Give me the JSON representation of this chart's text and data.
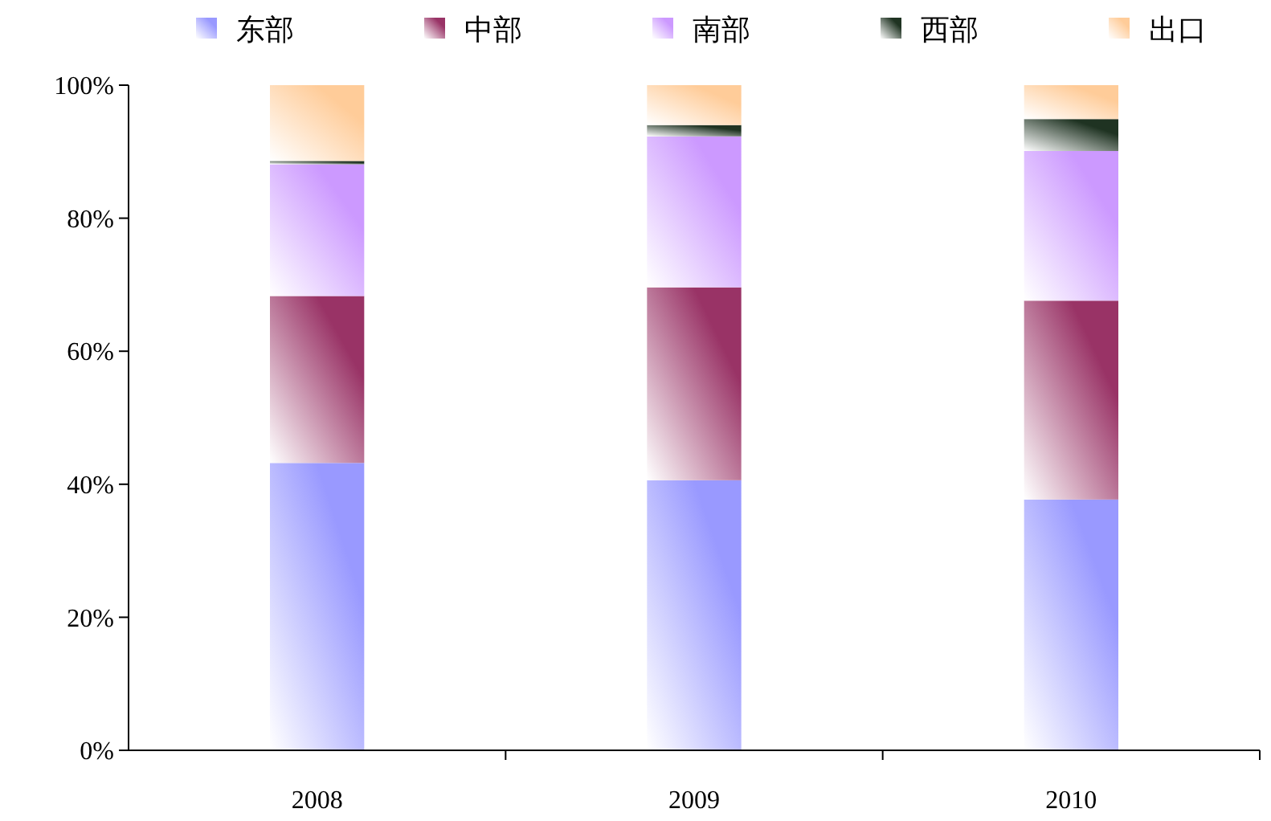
{
  "chart_data": {
    "type": "bar",
    "stacked": true,
    "categories": [
      "2008",
      "2009",
      "2010"
    ],
    "series": [
      {
        "name": "东部",
        "color": "#9999ff",
        "values": [
          43.2,
          40.6,
          37.7
        ]
      },
      {
        "name": "中部",
        "color": "#993366",
        "values": [
          25.1,
          29,
          29.9
        ]
      },
      {
        "name": "南部",
        "color": "#cc99ff",
        "values": [
          19.8,
          22.7,
          22.5
        ]
      },
      {
        "name": "西部",
        "color": "#1f3322",
        "values": [
          0.5,
          1.7,
          4.8
        ]
      },
      {
        "name": "出口",
        "color": "#ffcc99",
        "values": [
          11.4,
          6,
          5.1
        ]
      }
    ],
    "ylim": [
      0,
      100
    ],
    "yticks": [
      {
        "value": 0,
        "label": "0%"
      },
      {
        "value": 20,
        "label": "20%"
      },
      {
        "value": 40,
        "label": "40%"
      },
      {
        "value": 60,
        "label": "60%"
      },
      {
        "value": 80,
        "label": "80%"
      },
      {
        "value": 100,
        "label": "100%"
      }
    ],
    "grid": false,
    "legend": "top"
  }
}
